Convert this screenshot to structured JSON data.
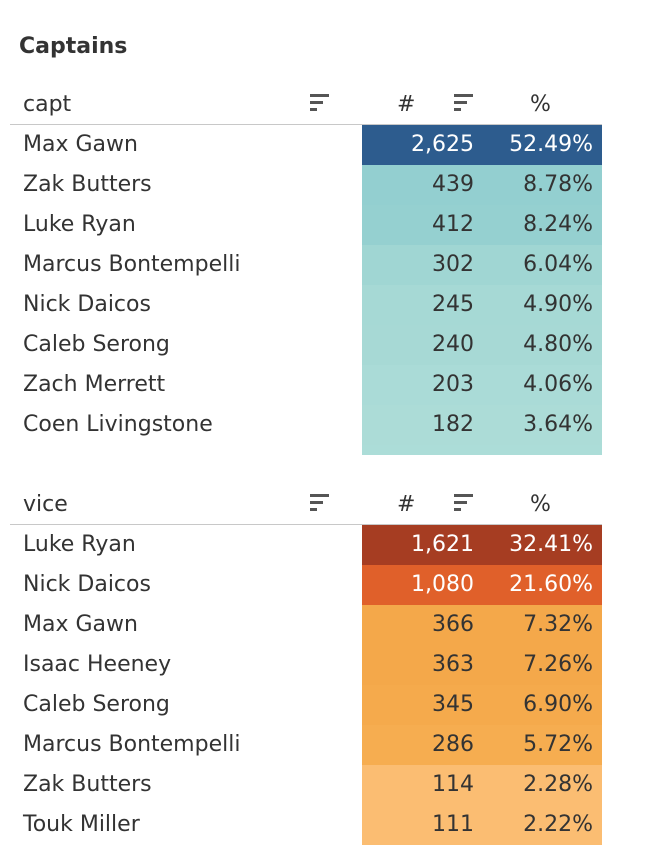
{
  "title": "Captains",
  "headers": {
    "hash": "#",
    "pct": "%"
  },
  "captains": {
    "header": "capt",
    "tail_color": "#acddd8",
    "rows": [
      {
        "name": "Max Gawn",
        "count": "2,625",
        "pct": "52.49%",
        "bg": "#2d5c8e",
        "fg": "#ffffff"
      },
      {
        "name": "Zak Butters",
        "count": "439",
        "pct": "8.78%",
        "bg": "#93cfd0",
        "fg": "#333333"
      },
      {
        "name": "Luke Ryan",
        "count": "412",
        "pct": "8.24%",
        "bg": "#95d0d0",
        "fg": "#333333"
      },
      {
        "name": "Marcus Bontempelli",
        "count": "302",
        "pct": "6.04%",
        "bg": "#a0d6d3",
        "fg": "#333333"
      },
      {
        "name": "Nick Daicos",
        "count": "245",
        "pct": "4.90%",
        "bg": "#a6d9d5",
        "fg": "#333333"
      },
      {
        "name": "Caleb Serong",
        "count": "240",
        "pct": "4.80%",
        "bg": "#a7d9d5",
        "fg": "#333333"
      },
      {
        "name": "Zach Merrett",
        "count": "203",
        "pct": "4.06%",
        "bg": "#aadbd7",
        "fg": "#333333"
      },
      {
        "name": "Coen Livingstone",
        "count": "182",
        "pct": "3.64%",
        "bg": "#acdcd7",
        "fg": "#333333"
      }
    ]
  },
  "vice": {
    "header": "vice",
    "rows": [
      {
        "name": "Luke Ryan",
        "count": "1,621",
        "pct": "32.41%",
        "bg": "#a63d22",
        "fg": "#ffffff"
      },
      {
        "name": "Nick Daicos",
        "count": "1,080",
        "pct": "21.60%",
        "bg": "#e0602a",
        "fg": "#ffffff"
      },
      {
        "name": "Max Gawn",
        "count": "366",
        "pct": "7.32%",
        "bg": "#f4a84a",
        "fg": "#333333"
      },
      {
        "name": "Isaac Heeney",
        "count": "363",
        "pct": "7.26%",
        "bg": "#f4a84a",
        "fg": "#333333"
      },
      {
        "name": "Caleb Serong",
        "count": "345",
        "pct": "6.90%",
        "bg": "#f5aa4c",
        "fg": "#333333"
      },
      {
        "name": "Marcus Bontempelli",
        "count": "286",
        "pct": "5.72%",
        "bg": "#f6ad50",
        "fg": "#333333"
      },
      {
        "name": "Zak Butters",
        "count": "114",
        "pct": "2.28%",
        "bg": "#fbbd72",
        "fg": "#333333"
      },
      {
        "name": "Touk Miller",
        "count": "111",
        "pct": "2.22%",
        "bg": "#fbbd72",
        "fg": "#333333"
      }
    ]
  }
}
